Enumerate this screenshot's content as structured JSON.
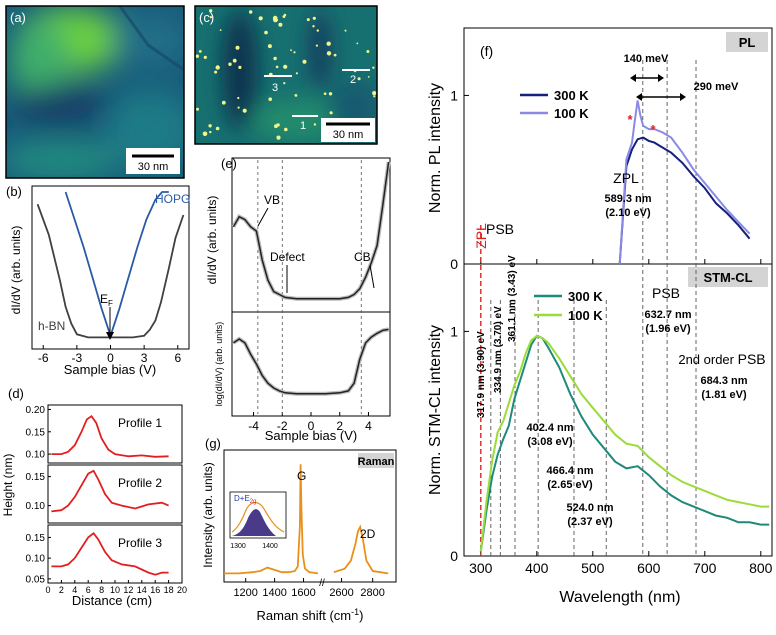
{
  "chart_data": [
    {
      "id": "a",
      "type": "heatmap",
      "panel_label": "(a)",
      "scalebar": "30 nm",
      "colormap": [
        "#0d2a5a",
        "#1f6f8b",
        "#2fa37a",
        "#8ad24a"
      ]
    },
    {
      "id": "b",
      "type": "line",
      "panel_label": "(b)",
      "xlabel": "Sample bias (V)",
      "ylabel": "dI/dV (arb. units)",
      "xlim": [
        -7,
        7
      ],
      "xticks": [
        "-6",
        "-3",
        "0",
        "3",
        "6"
      ],
      "annotation": "E",
      "annotation_sub": "F",
      "series": [
        {
          "name": "HOPG",
          "color": "#2a5aa6",
          "x": [
            -4.0,
            -3.2,
            -2.4,
            -1.6,
            -0.8,
            0.0,
            0.8,
            1.6,
            2.4,
            3.2,
            4.0,
            4.6,
            5.2
          ],
          "y": [
            1.0,
            0.82,
            0.64,
            0.44,
            0.24,
            0.06,
            0.24,
            0.44,
            0.64,
            0.82,
            0.95,
            1.0,
            1.0
          ]
        },
        {
          "name": "h-BN",
          "color": "#404040",
          "x": [
            -6.5,
            -5.5,
            -4.5,
            -4.0,
            -3.5,
            -3.0,
            -2.0,
            -1.0,
            0.0,
            1.0,
            2.0,
            3.0,
            3.5,
            4.0,
            4.5,
            5.2,
            5.8,
            6.5
          ],
          "y": [
            0.92,
            0.72,
            0.42,
            0.25,
            0.14,
            0.07,
            0.05,
            0.05,
            0.05,
            0.05,
            0.05,
            0.06,
            0.1,
            0.16,
            0.28,
            0.5,
            0.7,
            0.85
          ]
        }
      ]
    },
    {
      "id": "c",
      "type": "heatmap",
      "panel_label": "(c)",
      "scalebar": "30 nm",
      "profile_labels": [
        "1",
        "2",
        "3"
      ],
      "colormap": [
        "#0e2f4f",
        "#176b7c",
        "#2e9a6f",
        "#e8f07a"
      ]
    },
    {
      "id": "d",
      "type": "line",
      "panel_label": "(d)",
      "xlabel": "Distance (cm)",
      "ylabel": "Height (nm)",
      "xlim": [
        0,
        20
      ],
      "xticks": [
        "0",
        "2",
        "4",
        "6",
        "8",
        "10",
        "12",
        "14",
        "16",
        "18",
        "20"
      ],
      "subplots": [
        {
          "name": "Profile 1",
          "ylim": [
            0.08,
            0.21
          ],
          "yticks": [
            "0.20",
            "0.15",
            "0.10"
          ],
          "x": [
            0.5,
            2,
            3,
            4,
            5,
            5.8,
            6.5,
            7.2,
            8,
            9,
            10,
            12,
            14,
            16,
            18
          ],
          "y": [
            0.1,
            0.1,
            0.105,
            0.12,
            0.15,
            0.178,
            0.185,
            0.17,
            0.135,
            0.11,
            0.1,
            0.095,
            0.097,
            0.094,
            0.095
          ]
        },
        {
          "name": "Profile 2",
          "ylim": [
            0.07,
            0.17
          ],
          "yticks": [
            "0.15",
            "0.10"
          ],
          "x": [
            0.5,
            2,
            3,
            4,
            5,
            6,
            6.8,
            7.5,
            8.5,
            9.5,
            11,
            13,
            15,
            17,
            18
          ],
          "y": [
            0.09,
            0.092,
            0.1,
            0.115,
            0.135,
            0.155,
            0.16,
            0.145,
            0.12,
            0.105,
            0.1,
            0.095,
            0.102,
            0.105,
            0.1
          ]
        },
        {
          "name": "Profile 3",
          "ylim": [
            0.04,
            0.18
          ],
          "yticks": [
            "0.15",
            "0.10",
            "0.05"
          ],
          "x": [
            0.5,
            2,
            3,
            4,
            5,
            6,
            6.8,
            7.5,
            8.5,
            9.5,
            11,
            13,
            15,
            16,
            17,
            18
          ],
          "y": [
            0.08,
            0.08,
            0.085,
            0.1,
            0.125,
            0.15,
            0.16,
            0.145,
            0.115,
            0.095,
            0.085,
            0.08,
            0.065,
            0.06,
            0.065,
            0.065
          ]
        }
      ]
    },
    {
      "id": "e",
      "type": "line",
      "panel_label": "(e)",
      "xlabel": "Sample bias (V)",
      "xlim": [
        -5.5,
        5.5
      ],
      "xticks": [
        "-4",
        "-2",
        "0",
        "2",
        "4"
      ],
      "ylabel_top": "dI/dV (arb. units)",
      "ylabel_bottom": "log(dI/dV) (arb. units)",
      "annotations": [
        "VB",
        "Defect",
        "CB"
      ],
      "markers_x": [
        -3.7,
        -2.0,
        3.5
      ],
      "top": {
        "x": [
          -5.4,
          -5.0,
          -4.6,
          -4.2,
          -3.8,
          -3.4,
          -3.0,
          -2.6,
          -2.2,
          -1.8,
          -1.0,
          0.0,
          1.0,
          2.0,
          2.6,
          3.0,
          3.4,
          3.8,
          4.2,
          4.6,
          5.0,
          5.4
        ],
        "y": [
          0.55,
          0.62,
          0.6,
          0.55,
          0.52,
          0.32,
          0.18,
          0.1,
          0.08,
          0.06,
          0.05,
          0.05,
          0.05,
          0.05,
          0.06,
          0.08,
          0.12,
          0.2,
          0.3,
          0.42,
          0.7,
          1.0
        ]
      },
      "bottom": {
        "x": [
          -5.4,
          -5.0,
          -4.6,
          -4.2,
          -3.8,
          -3.4,
          -3.0,
          -2.6,
          -2.2,
          -1.8,
          -1.0,
          0.0,
          1.0,
          2.0,
          2.6,
          3.0,
          3.4,
          3.8,
          4.2,
          4.6,
          5.0,
          5.4
        ],
        "y": [
          0.72,
          0.76,
          0.72,
          0.6,
          0.5,
          0.38,
          0.3,
          0.25,
          0.22,
          0.2,
          0.19,
          0.19,
          0.19,
          0.2,
          0.22,
          0.3,
          0.55,
          0.72,
          0.78,
          0.82,
          0.85,
          0.86
        ]
      }
    },
    {
      "id": "g",
      "type": "line",
      "panel_label": "(g)",
      "badge": "Raman",
      "xlabel": "Raman shift (cm",
      "xlabel_sup": "-1",
      "xlabel_end": ")",
      "ylabel": "Intensity (arb. units)",
      "xticks": [
        "1200",
        "1400",
        "1600",
        "2600",
        "2800"
      ],
      "peak_labels": [
        "G",
        "2D"
      ],
      "inset_label": "D+E",
      "inset_sub": "2g",
      "inset_xticks": [
        "1300",
        "1400"
      ],
      "color": "#e8901a",
      "x": [
        1050,
        1150,
        1250,
        1300,
        1350,
        1400,
        1450,
        1500,
        1540,
        1560,
        1575,
        1580,
        1585,
        1595,
        1610,
        1640,
        1700,
        2550,
        2620,
        2660,
        2690,
        2705,
        2720,
        2735,
        2760,
        2800,
        2900
      ],
      "y": [
        0.04,
        0.04,
        0.05,
        0.06,
        0.09,
        0.07,
        0.05,
        0.05,
        0.06,
        0.1,
        0.45,
        0.98,
        0.6,
        0.2,
        0.08,
        0.05,
        0.04,
        0.05,
        0.08,
        0.15,
        0.3,
        0.4,
        0.44,
        0.35,
        0.15,
        0.06,
        0.04
      ]
    },
    {
      "id": "f",
      "type": "line",
      "panel_label": "(f)",
      "xlabel": "Wavelength (nm)",
      "xlim": [
        270,
        820
      ],
      "xticks": [
        "300",
        "400",
        "500",
        "600",
        "700",
        "800"
      ],
      "zpl_line_label": "ZPL",
      "psb_top_label": "PSB",
      "pl": {
        "badge": "PL",
        "ylabel": "Norm. PL intensity",
        "ylim": [
          0,
          1.4
        ],
        "yticks": [
          "0",
          "1"
        ],
        "energy_labels": [
          "140 meV",
          "290 meV"
        ],
        "zpl_label": "ZPL",
        "zpl_value": "589.3 nm",
        "zpl_energy": "(2.10 eV)",
        "series": [
          {
            "name": "300 K",
            "color": "#15207a",
            "x": [
              548,
              560,
              570,
              580,
              590,
              600,
              610,
              620,
              640,
              660,
              680,
              700,
              720,
              740,
              760,
              780
            ],
            "y": [
              0.0,
              0.58,
              0.68,
              0.74,
              0.75,
              0.73,
              0.72,
              0.7,
              0.66,
              0.6,
              0.52,
              0.45,
              0.36,
              0.3,
              0.23,
              0.15
            ]
          },
          {
            "name": "100 K",
            "color": "#8a8ae6",
            "x": [
              548,
              560,
              570,
              575,
              580,
              585,
              590,
              600,
              610,
              625,
              640,
              660,
              680,
              700,
              720,
              740,
              760,
              780
            ],
            "y": [
              0.0,
              0.62,
              0.72,
              0.85,
              0.97,
              0.88,
              0.82,
              0.8,
              0.8,
              0.78,
              0.75,
              0.66,
              0.56,
              0.48,
              0.4,
              0.32,
              0.25,
              0.18
            ]
          }
        ]
      },
      "cl": {
        "badge": "STM-CL",
        "ylabel": "Norm. STM-CL intensity",
        "ylim": [
          0,
          1.3
        ],
        "yticks": [
          "0",
          "1"
        ],
        "psb_label": "PSB",
        "psb_value": "632.7 nm",
        "psb_energy": "(1.96 eV)",
        "psb2_label_a": "2nd order",
        "psb2_label_b": "PSB",
        "psb2_value": "684.3 nm",
        "psb2_energy": "(1.81 eV)",
        "vertical_peaks": [
          "317.9 nm (3.90) eV",
          "334.9 nm (3.70) eV",
          "361.1 nm (3.43) eV"
        ],
        "peak_labels": [
          {
            "value": "402.4 nm",
            "energy": "(3.08 eV)"
          },
          {
            "value": "466.4 nm",
            "energy": "(2.65 eV)"
          },
          {
            "value": "524.0 nm",
            "energy": "(2.37 eV)"
          }
        ],
        "series": [
          {
            "name": "300 K",
            "color": "#1e8a7a",
            "x": [
              300,
              310,
              320,
              330,
              340,
              350,
              360,
              370,
              380,
              390,
              400,
              410,
              420,
              440,
              460,
              480,
              500,
              520,
              540,
              560,
              580,
              600,
              620,
              640,
              660,
              680,
              700,
              720,
              740,
              760,
              780,
              800,
              815
            ],
            "y": [
              0.02,
              0.2,
              0.35,
              0.45,
              0.52,
              0.58,
              0.7,
              0.78,
              0.86,
              0.94,
              0.98,
              0.97,
              0.93,
              0.84,
              0.72,
              0.62,
              0.54,
              0.48,
              0.42,
              0.39,
              0.4,
              0.36,
              0.31,
              0.27,
              0.24,
              0.22,
              0.2,
              0.18,
              0.17,
              0.15,
              0.15,
              0.14,
              0.14
            ]
          },
          {
            "name": "100 K",
            "color": "#9adc3a",
            "x": [
              300,
              310,
              320,
              330,
              340,
              350,
              360,
              370,
              380,
              390,
              400,
              410,
              420,
              440,
              460,
              480,
              500,
              520,
              540,
              560,
              580,
              600,
              620,
              640,
              660,
              680,
              700,
              720,
              740,
              760,
              780,
              800,
              815
            ],
            "y": [
              0.02,
              0.24,
              0.42,
              0.55,
              0.6,
              0.68,
              0.76,
              0.82,
              0.9,
              0.96,
              0.98,
              0.97,
              0.95,
              0.88,
              0.8,
              0.72,
              0.66,
              0.6,
              0.54,
              0.5,
              0.49,
              0.44,
              0.4,
              0.36,
              0.33,
              0.31,
              0.29,
              0.27,
              0.25,
              0.24,
              0.23,
              0.22,
              0.22
            ]
          }
        ]
      }
    }
  ]
}
